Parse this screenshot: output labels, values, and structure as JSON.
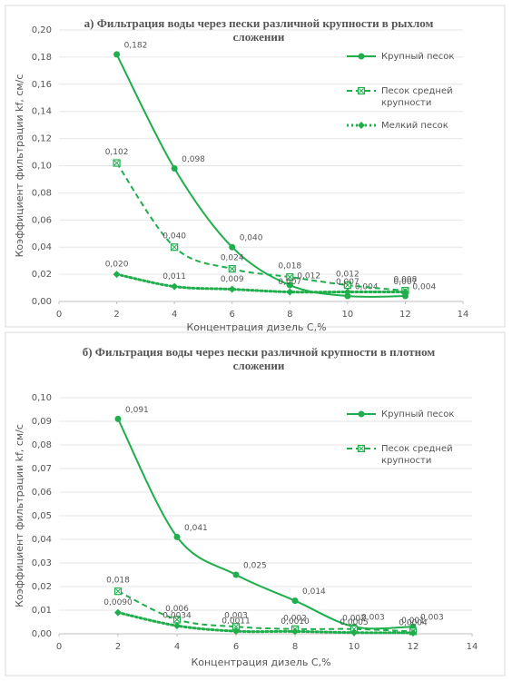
{
  "chart_data": [
    {
      "type": "line",
      "title": "а) Фильтрация воды через пески различной крупности в рыхлом сложении",
      "x_label": "Концентрация дизель С,%",
      "y_label": "Коэффициент фильтрации kf, см/с",
      "x": [
        2,
        4,
        6,
        8,
        10,
        12
      ],
      "xlim": [
        0,
        14
      ],
      "xticks": [
        0,
        2,
        4,
        6,
        8,
        10,
        12,
        14
      ],
      "ylim": [
        0,
        0.2
      ],
      "yticks": [
        {
          "value": 0,
          "label": "0,00"
        },
        {
          "value": 0.02,
          "label": "0,02"
        },
        {
          "value": 0.04,
          "label": "0,04"
        },
        {
          "value": 0.06,
          "label": "0,06"
        },
        {
          "value": 0.08,
          "label": "0,08"
        },
        {
          "value": 0.1,
          "label": "0,10"
        },
        {
          "value": 0.12,
          "label": "0,12"
        },
        {
          "value": 0.14,
          "label": "0,14"
        },
        {
          "value": 0.16,
          "label": "0,16"
        },
        {
          "value": 0.18,
          "label": "0,18"
        },
        {
          "value": 0.2,
          "label": "0,20"
        }
      ],
      "grid": true,
      "legend": "right",
      "series": [
        {
          "name": "Крупный песок",
          "color": "#1fae4b",
          "line": "solid",
          "marker": "circle",
          "values": [
            0.182,
            0.098,
            0.04,
            0.012,
            0.004,
            0.004
          ],
          "value_labels": [
            "0,182",
            "0,098",
            "0,040",
            "0,012",
            "0,004",
            "0,004"
          ]
        },
        {
          "name": "Песок средней крупности",
          "color": "#1fae4b",
          "line": "dashed",
          "marker": "square-x",
          "values": [
            0.102,
            0.04,
            0.024,
            0.018,
            0.012,
            0.008
          ],
          "value_labels": [
            "0,102",
            "0,040",
            "0,024",
            "0,018",
            "0,012",
            "0,008"
          ]
        },
        {
          "name": "Мелкий песок",
          "color": "#1fae4b",
          "line": "dotted",
          "marker": "diamond",
          "values": [
            0.02,
            0.011,
            0.009,
            0.007,
            0.007,
            0.007
          ],
          "value_labels": [
            "0,020",
            "0,011",
            "0,009",
            "0,007",
            "0,007",
            "0,007"
          ]
        }
      ]
    },
    {
      "type": "line",
      "title": "б) Фильтрация воды через пески различной крупности в плотном сложении",
      "x_label": "Концентрация дизель С,%",
      "y_label": "Коэффициент фильтрации kf, см/с",
      "x": [
        2,
        4,
        6,
        8,
        10,
        12
      ],
      "xlim": [
        0,
        14
      ],
      "xticks": [
        0,
        2,
        4,
        6,
        8,
        10,
        12,
        14
      ],
      "ylim": [
        0,
        0.1
      ],
      "yticks": [
        {
          "value": 0,
          "label": "0,00"
        },
        {
          "value": 0.01,
          "label": "0,01"
        },
        {
          "value": 0.02,
          "label": "0,02"
        },
        {
          "value": 0.03,
          "label": "0,03"
        },
        {
          "value": 0.04,
          "label": "0,04"
        },
        {
          "value": 0.05,
          "label": "0,05"
        },
        {
          "value": 0.06,
          "label": "0,06"
        },
        {
          "value": 0.07,
          "label": "0,07"
        },
        {
          "value": 0.08,
          "label": "0,08"
        },
        {
          "value": 0.09,
          "label": "0,09"
        },
        {
          "value": 0.1,
          "label": "0,10"
        }
      ],
      "grid": true,
      "legend": "right",
      "series": [
        {
          "name": "Крупный песок",
          "color": "#1fae4b",
          "line": "solid",
          "marker": "circle",
          "values": [
            0.091,
            0.041,
            0.025,
            0.014,
            0.003,
            0.003
          ],
          "value_labels": [
            "0,091",
            "0,041",
            "0,025",
            "0,014",
            "0,003",
            "0,003"
          ]
        },
        {
          "name": "Песок средней крупности",
          "color": "#1fae4b",
          "line": "dashed",
          "marker": "square-x",
          "values": [
            0.018,
            0.006,
            0.003,
            0.002,
            0.002,
            0.001
          ],
          "value_labels": [
            "0,018",
            "0,006",
            "0,003",
            "0,002",
            "0,002",
            "0,001"
          ]
        },
        {
          "color": "#1fae4b",
          "line": "dotted",
          "marker": "diamond",
          "values": [
            0.009,
            0.0034,
            0.0011,
            0.001,
            0.0005,
            0.0004
          ],
          "value_labels": [
            "0,0090",
            "0,0034",
            "0,0011",
            "0,0010",
            "0,0005",
            "0,0004"
          ]
        }
      ]
    }
  ]
}
